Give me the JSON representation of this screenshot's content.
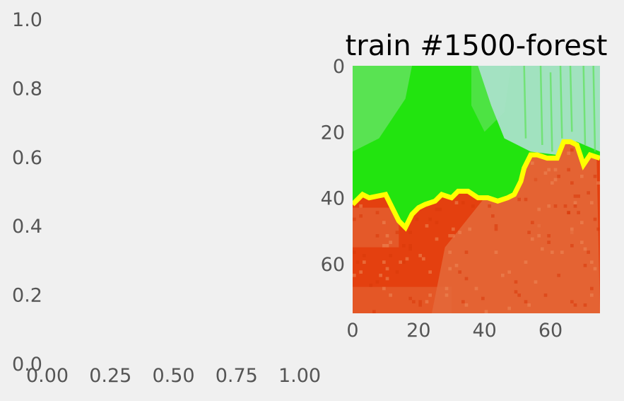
{
  "chart_data": [
    {
      "type": "line",
      "title": "",
      "xlabel": "",
      "ylabel": "",
      "xlim": [
        0,
        1
      ],
      "ylim": [
        0,
        1
      ],
      "grid": false,
      "series": [],
      "xticks": [
        "0.00",
        "0.25",
        "0.50",
        "0.75",
        "1.00"
      ],
      "yticks": [
        "0.0",
        "0.2",
        "0.4",
        "0.6",
        "0.8",
        "1.0"
      ]
    },
    {
      "type": "heatmap",
      "title": "train #1500-forest",
      "xlabel": "",
      "ylabel": "",
      "xlim": [
        0,
        75
      ],
      "ylim": [
        75,
        0
      ],
      "xticks": [
        "0",
        "20",
        "40",
        "60"
      ],
      "yticks": [
        "0",
        "20",
        "40",
        "60"
      ],
      "grid": false,
      "colors": {
        "region_top": "#22e40f",
        "region_top_light": "#5fe25a",
        "region_top_pale": "#a9e2c9",
        "region_bottom": "#e4400f",
        "region_bottom_light": "#e46a3a",
        "boundary": "#ffff00"
      },
      "boundary_line": {
        "x": [
          0,
          3,
          5,
          10,
          12,
          14,
          16,
          18,
          20,
          22,
          25,
          27,
          30,
          32,
          35,
          38,
          41,
          44,
          47,
          49,
          51,
          52,
          54,
          56,
          59,
          62,
          64,
          66,
          68,
          70,
          72,
          74
        ],
        "y": [
          42,
          39,
          40,
          39,
          43,
          47,
          49,
          45,
          43,
          42,
          41,
          39,
          40,
          38,
          38,
          40,
          40,
          41,
          40,
          39,
          35,
          31,
          27,
          27,
          28,
          28,
          23,
          23,
          24,
          30,
          27,
          28
        ]
      }
    }
  ]
}
